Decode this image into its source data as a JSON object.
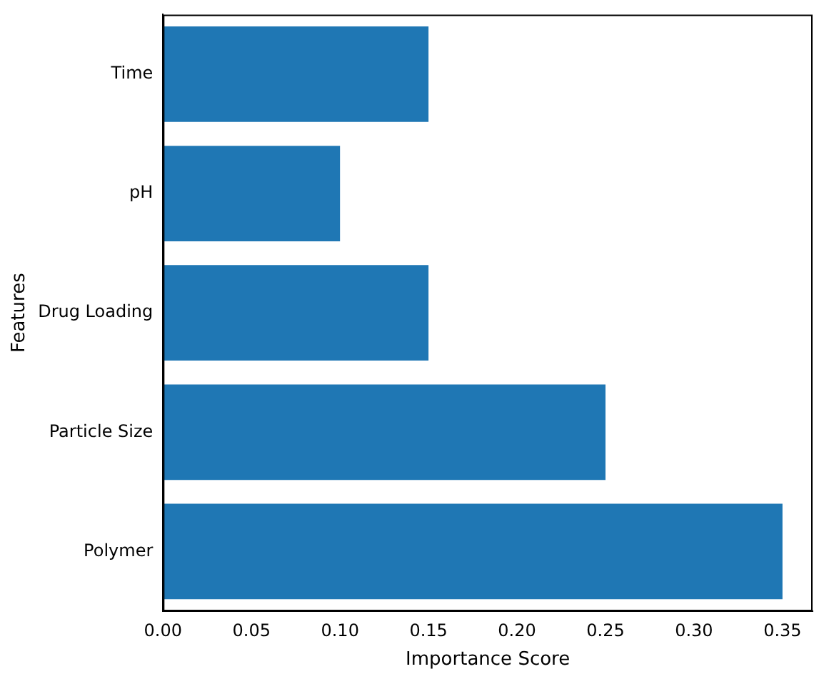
{
  "chart_data": {
    "type": "bar",
    "orientation": "horizontal",
    "xlabel": "Importance Score",
    "ylabel": "Features",
    "categories": [
      "Time",
      "pH",
      "Drug Loading",
      "Particle Size",
      "Polymer"
    ],
    "values": [
      0.15,
      0.1,
      0.15,
      0.25,
      0.35
    ],
    "color": "#1f77b4",
    "xlim": [
      0,
      0.367
    ],
    "xticks": [
      {
        "value": 0,
        "label": "0.00"
      },
      {
        "value": 0.05,
        "label": "0.05"
      },
      {
        "value": 0.1,
        "label": "0.10"
      },
      {
        "value": 0.15,
        "label": "0.15"
      },
      {
        "value": 0.2,
        "label": "0.20"
      },
      {
        "value": 0.25,
        "label": "0.25"
      },
      {
        "value": 0.3,
        "label": "0.30"
      },
      {
        "value": 0.35,
        "label": "0.35"
      }
    ],
    "grid": false,
    "legend": false
  }
}
